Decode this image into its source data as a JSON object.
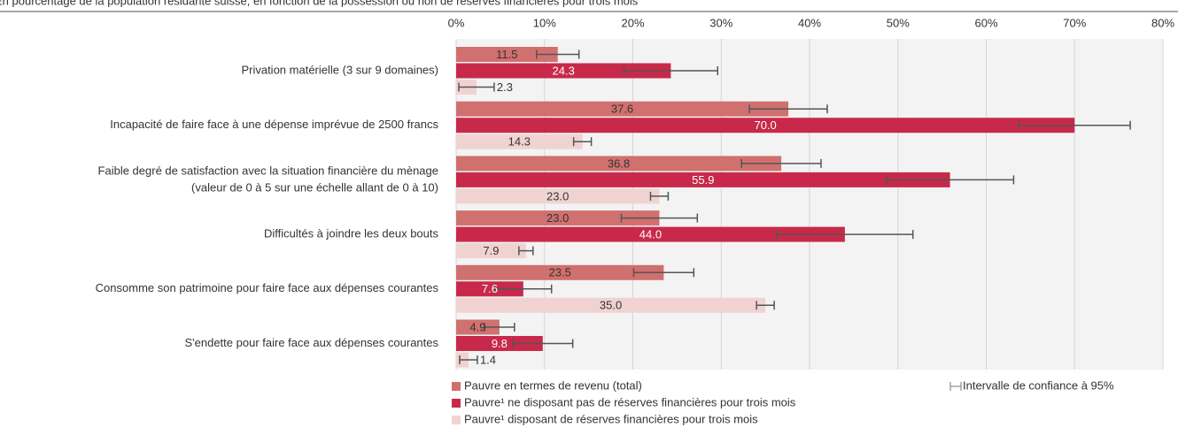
{
  "chart_data": {
    "type": "bar",
    "orientation": "horizontal",
    "title": "En pourcentage de la population résidante suisse, en fonction de la possession ou non de réserves financières pour trois mois",
    "categories": [
      [
        "Privation matérielle (3 sur 9 domaines)"
      ],
      [
        "Incapacité de faire face à une dépense imprévue de 2500 francs"
      ],
      [
        "Faible degré de satisfaction avec la situation financière du mènage",
        "(valeur de 0 à 5 sur une échelle allant de 0 à 10)"
      ],
      [
        "Difficultés à joindre les deux bouts"
      ],
      [
        "Consomme son patrimoine pour faire face aux dépenses courantes"
      ],
      [
        "S'endette pour faire face aux dépenses courantes"
      ]
    ],
    "series": [
      {
        "name": "Pauvre en termes de revenu (total)",
        "color": "#d0706f",
        "values": [
          11.5,
          37.6,
          36.8,
          23.0,
          23.5,
          4.9
        ],
        "value_labels": [
          "11.5",
          "37.6",
          "36.8",
          "23.0",
          "23.5",
          "4.9"
        ],
        "errors": [
          2.4,
          4.4,
          4.5,
          4.3,
          3.4,
          1.7
        ]
      },
      {
        "name": "Pauvre¹ ne disposant pas de réserves financières pour trois mois",
        "color": "#c8294a",
        "values": [
          24.3,
          70.0,
          55.9,
          44.0,
          7.6,
          9.8
        ],
        "value_labels": [
          "24.3",
          "70.0",
          "55.9",
          "44.0",
          "7.6",
          "9.8"
        ],
        "errors": [
          5.3,
          6.3,
          7.2,
          7.7,
          3.2,
          3.4
        ]
      },
      {
        "name": "Pauvre¹ disposant de réserves financières pour trois mois",
        "color": "#f0d3d1",
        "values": [
          2.3,
          14.3,
          23.0,
          7.9,
          35.0,
          1.4
        ],
        "value_labels": [
          "2.3",
          "14.3",
          "23.0",
          "7.9",
          "35.0",
          "1.4"
        ],
        "errors": [
          2.0,
          1.0,
          1.0,
          0.8,
          1.0,
          1.0
        ]
      }
    ],
    "error_legend": "Intervalle de confiance à 95%",
    "xlim": [
      0,
      80
    ],
    "xticks": [
      {
        "value": 0,
        "label": "0%"
      },
      {
        "value": 10,
        "label": "10%"
      },
      {
        "value": 20,
        "label": "20%"
      },
      {
        "value": 30,
        "label": "30%"
      },
      {
        "value": 40,
        "label": "40%"
      },
      {
        "value": 50,
        "label": "50%"
      },
      {
        "value": 60,
        "label": "60%"
      },
      {
        "value": 70,
        "label": "70%"
      },
      {
        "value": 80,
        "label": "80%"
      }
    ],
    "grid": true
  }
}
